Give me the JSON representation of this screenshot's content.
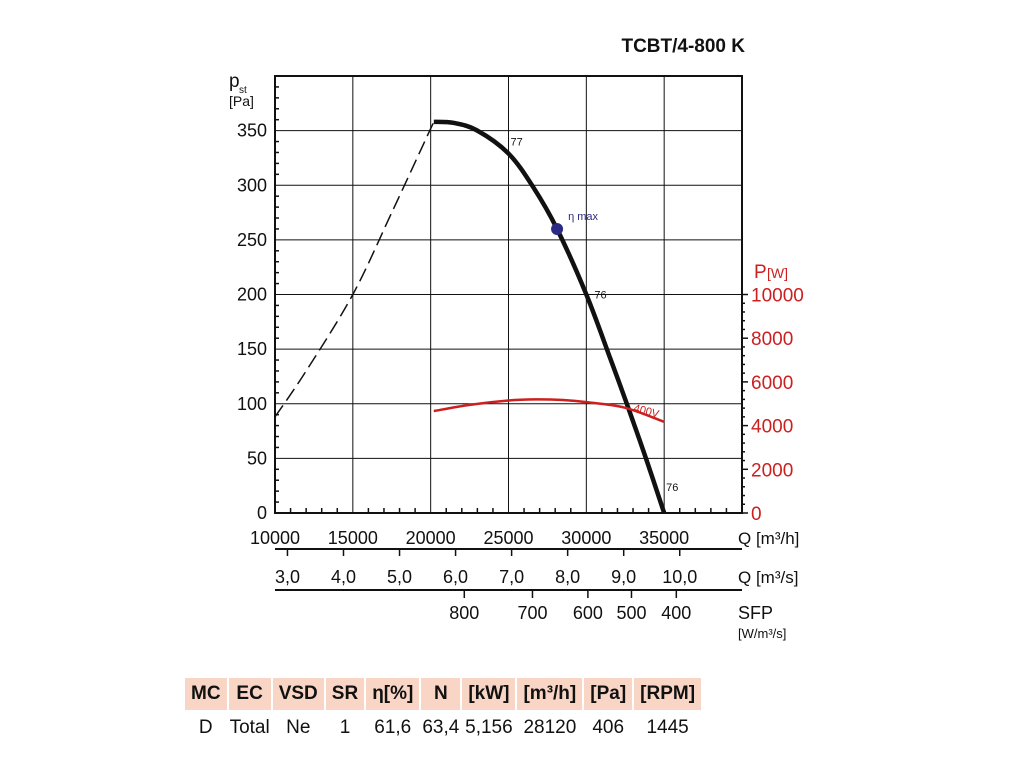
{
  "title": "TCBT/4-800 K",
  "chart_data": {
    "type": "line",
    "title": "TCBT/4-800 K",
    "xlabel": "Q [m³/h]",
    "ylabel_main": "p",
    "ylabel_sub": "st",
    "ylabel_unit": "[Pa]",
    "y2label_main": "P",
    "y2label_unit": "[W]",
    "xlim": [
      10000,
      40000
    ],
    "ylim": [
      0,
      400
    ],
    "y2lim": [
      0,
      20000
    ],
    "grid": true,
    "x_ticks": [
      10000,
      15000,
      20000,
      25000,
      30000,
      35000
    ],
    "x_tick_labels": [
      "10000",
      "15000",
      "20000",
      "25000",
      "30000",
      "35000"
    ],
    "y_ticks": [
      0,
      50,
      100,
      150,
      200,
      250,
      300,
      350
    ],
    "y_tick_labels": [
      "0",
      "50",
      "100",
      "150",
      "200",
      "250",
      "300",
      "350"
    ],
    "y2_ticks": [
      0,
      2000,
      4000,
      6000,
      8000,
      10000
    ],
    "y2_tick_labels": [
      "0",
      "2000",
      "4000",
      "6000",
      "8000",
      "10000"
    ],
    "q_m3s_axis": {
      "label": "Q [m³/s]",
      "ticks": [
        3.0,
        4.0,
        5.0,
        6.0,
        7.0,
        8.0,
        9.0,
        10.0
      ],
      "tick_labels": [
        "3,0",
        "4,0",
        "5,0",
        "6,0",
        "7,0",
        "8,0",
        "9,0",
        "10,0"
      ]
    },
    "sfp_axis": {
      "label": "SFP",
      "unit": "[W/m³/s]",
      "tick_labels": [
        "800",
        "700",
        "600",
        "500",
        "400"
      ],
      "tick_q_m3h": [
        22160,
        26540,
        30100,
        32900,
        35780
      ]
    },
    "series": [
      {
        "id": "pressure",
        "axis": "left",
        "color": "#111111",
        "style": "solid",
        "x": [
          20200,
          21500,
          23000,
          25000,
          26600,
          28120,
          30000,
          31550,
          32600,
          33830,
          35000
        ],
        "y": [
          358,
          357,
          350,
          329,
          298,
          260,
          200,
          141,
          100,
          50,
          0
        ]
      },
      {
        "id": "pressure-unstable",
        "axis": "left",
        "color": "#111111",
        "style": "dashed",
        "x": [
          10000,
          12000,
          15000,
          17500,
          20200
        ],
        "y": [
          88,
          130,
          200,
          275,
          358
        ]
      },
      {
        "name": "400V",
        "id": "power",
        "axis": "right",
        "color": "#cc1f1f",
        "style": "solid",
        "x": [
          20200,
          22500,
          25000,
          26700,
          28500,
          30000,
          32500,
          35000
        ],
        "y": [
          4665,
          4950,
          5150,
          5200,
          5170,
          5075,
          4815,
          4170
        ]
      }
    ],
    "annotations": [
      {
        "text": "77",
        "x": 25000,
        "y": 329
      },
      {
        "text": "76",
        "x": 30000,
        "y": 200
      },
      {
        "text": "76",
        "x": 35000,
        "y": 0
      },
      {
        "text": "η max",
        "x": 28120,
        "y": 260,
        "marker": true,
        "color": "#2b2a86"
      }
    ]
  },
  "table": {
    "headers": [
      "MC",
      "EC",
      "VSD",
      "SR",
      "η[%]",
      "N",
      "[kW]",
      "[m³/h]",
      "[Pa]",
      "[RPM]"
    ],
    "values": [
      "D",
      "Total",
      "Ne",
      "1",
      "61,6",
      "63,4",
      "5,156",
      "28120",
      "406",
      "1445"
    ],
    "header_bg": "#f9d5c5"
  }
}
